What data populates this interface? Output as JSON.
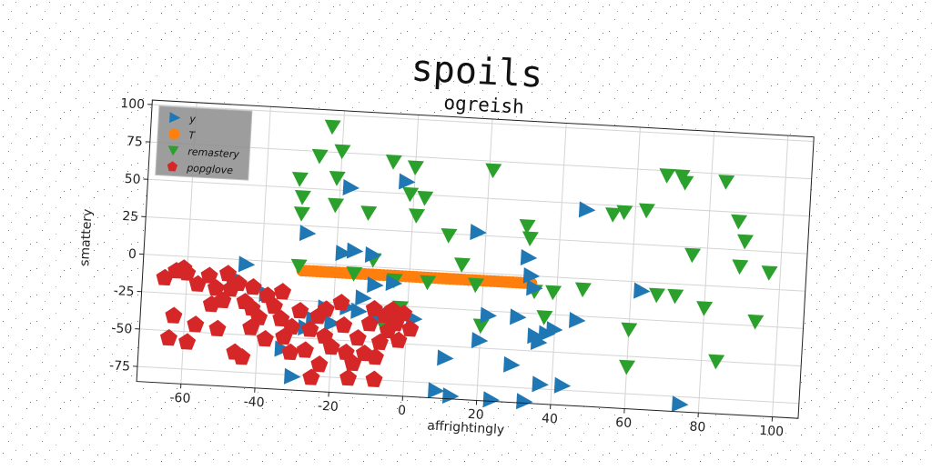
{
  "chart_data": {
    "type": "scatter",
    "suptitle": "spoils",
    "title": "ogreish",
    "xlabel": "affrightingly",
    "ylabel": "smattery",
    "xlim": [
      -72,
      107
    ],
    "ylim": [
      -85,
      103
    ],
    "xticks": [
      -60,
      -40,
      -20,
      0,
      20,
      40,
      60,
      80,
      100
    ],
    "yticks": [
      100,
      75,
      50,
      25,
      0,
      -25,
      -50,
      -75
    ],
    "grid": true,
    "legend_position": "top-left",
    "series": [
      {
        "name": "y",
        "marker": "triangle-right",
        "color": "#1f77b4",
        "points": [
          [
            -44,
            -3
          ],
          [
            -47,
            -12
          ],
          [
            -38,
            -22
          ],
          [
            -33,
            -58
          ],
          [
            -30,
            -76
          ],
          [
            -27,
            -43
          ],
          [
            -28,
            20
          ],
          [
            -25,
            -37
          ],
          [
            -22,
            -29
          ],
          [
            -20,
            -39
          ],
          [
            -18,
            8
          ],
          [
            -17,
            52
          ],
          [
            -16,
            -28
          ],
          [
            -13,
            -30
          ],
          [
            -12,
            -21
          ],
          [
            -9,
            -12
          ],
          [
            -15,
            10
          ],
          [
            -8,
            -35
          ],
          [
            -2,
            58
          ],
          [
            -4,
            -10
          ],
          [
            2,
            -33
          ],
          [
            -10,
            8
          ],
          [
            11,
            -58
          ],
          [
            9,
            -80
          ],
          [
            13,
            -83
          ],
          [
            18,
            27
          ],
          [
            20,
            -45
          ],
          [
            22,
            -28
          ],
          [
            24,
            -84
          ],
          [
            29,
            -60
          ],
          [
            33,
            -84
          ],
          [
            30,
            -28
          ],
          [
            32,
            12
          ],
          [
            33,
            0
          ],
          [
            34,
            -8
          ],
          [
            35,
            -40
          ],
          [
            36,
            -44
          ],
          [
            38,
            -38
          ],
          [
            40,
            -35
          ],
          [
            37,
            -72
          ],
          [
            43,
            -72
          ],
          [
            46,
            -28
          ],
          [
            47,
            46
          ],
          [
            63,
            -6
          ],
          [
            75,
            -80
          ]
        ]
      },
      {
        "name": "T",
        "marker": "circle",
        "color": "#ff7f0e",
        "line_segment": {
          "x_start": -29,
          "x_end": 33,
          "y": -5,
          "count": 63
        }
      },
      {
        "name": "remastery",
        "marker": "triangle-down",
        "color": "#2ca02c",
        "points": [
          [
            -23,
            92
          ],
          [
            -26,
            72
          ],
          [
            -31,
            56
          ],
          [
            -30,
            44
          ],
          [
            -30,
            33
          ],
          [
            -20,
            76
          ],
          [
            -21,
            58
          ],
          [
            -21,
            40
          ],
          [
            -12,
            36
          ],
          [
            -6,
            71
          ],
          [
            -10,
            5
          ],
          [
            0,
            68
          ],
          [
            -1,
            50
          ],
          [
            1,
            36
          ],
          [
            3,
            48
          ],
          [
            -30,
            -2
          ],
          [
            -15,
            -5
          ],
          [
            -6,
            -40
          ],
          [
            -4,
            -8
          ],
          [
            -2,
            -26
          ],
          [
            5,
            -8
          ],
          [
            10,
            24
          ],
          [
            14,
            5
          ],
          [
            18,
            -8
          ],
          [
            20,
            -35
          ],
          [
            21,
            69
          ],
          [
            31,
            33
          ],
          [
            32,
            25
          ],
          [
            34,
            -10
          ],
          [
            37,
            -27
          ],
          [
            39,
            -10
          ],
          [
            47,
            -7
          ],
          [
            54,
            44
          ],
          [
            57,
            46
          ],
          [
            60,
            -32
          ],
          [
            60,
            -57
          ],
          [
            63,
            48
          ],
          [
            67,
            -8
          ],
          [
            68,
            72
          ],
          [
            72,
            -8
          ],
          [
            72,
            72
          ],
          [
            73,
            68
          ],
          [
            76,
            20
          ],
          [
            80,
            -15
          ],
          [
            84,
            70
          ],
          [
            84,
            -50
          ],
          [
            88,
            44
          ],
          [
            89,
            14
          ],
          [
            90,
            31
          ],
          [
            94,
            -22
          ],
          [
            97,
            11
          ]
        ]
      },
      {
        "name": "popglove",
        "marker": "pentagon",
        "color": "#d62728",
        "points": [
          [
            -66,
            -15
          ],
          [
            -63,
            -10
          ],
          [
            -60,
            -11
          ],
          [
            -57,
            -18
          ],
          [
            -54,
            -12
          ],
          [
            -53,
            -31
          ],
          [
            -52,
            -20
          ],
          [
            -50,
            -28
          ],
          [
            -48,
            -20
          ],
          [
            -46,
            -16
          ],
          [
            -44,
            -28
          ],
          [
            -42,
            -18
          ],
          [
            -42,
            -32
          ],
          [
            -42,
            -45
          ],
          [
            -44,
            -65
          ],
          [
            -40,
            -38
          ],
          [
            -38,
            -23
          ],
          [
            -38,
            -52
          ],
          [
            -36,
            -30
          ],
          [
            -34,
            -20
          ],
          [
            -34,
            -38
          ],
          [
            -33,
            -50
          ],
          [
            -31,
            -43
          ],
          [
            -31,
            -60
          ],
          [
            -29,
            -32
          ],
          [
            -27,
            -58
          ],
          [
            -26,
            -44
          ],
          [
            -25,
            -76
          ],
          [
            -24,
            -35
          ],
          [
            -23,
            -67
          ],
          [
            -22,
            -48
          ],
          [
            -22,
            -30
          ],
          [
            -20,
            -55
          ],
          [
            -18,
            -25
          ],
          [
            -17,
            -40
          ],
          [
            -16,
            -58
          ],
          [
            -15,
            -75
          ],
          [
            -14,
            -65
          ],
          [
            -13,
            -48
          ],
          [
            -11,
            -58
          ],
          [
            -10,
            -38
          ],
          [
            -9,
            -28
          ],
          [
            -8,
            -60
          ],
          [
            -7,
            -50
          ],
          [
            -6,
            -32
          ],
          [
            -5,
            -42
          ],
          [
            -4,
            -28
          ],
          [
            -3,
            -37
          ],
          [
            -2,
            -48
          ],
          [
            -1,
            -30
          ],
          [
            1,
            -40
          ],
          [
            -8,
            -75
          ],
          [
            -64,
            -55
          ],
          [
            -59,
            -57
          ],
          [
            -57,
            -45
          ],
          [
            -51,
            -47
          ],
          [
            -46,
            -62
          ],
          [
            -63,
            -40
          ],
          [
            -61,
            -8
          ],
          [
            -49,
            -10
          ]
        ]
      }
    ]
  }
}
